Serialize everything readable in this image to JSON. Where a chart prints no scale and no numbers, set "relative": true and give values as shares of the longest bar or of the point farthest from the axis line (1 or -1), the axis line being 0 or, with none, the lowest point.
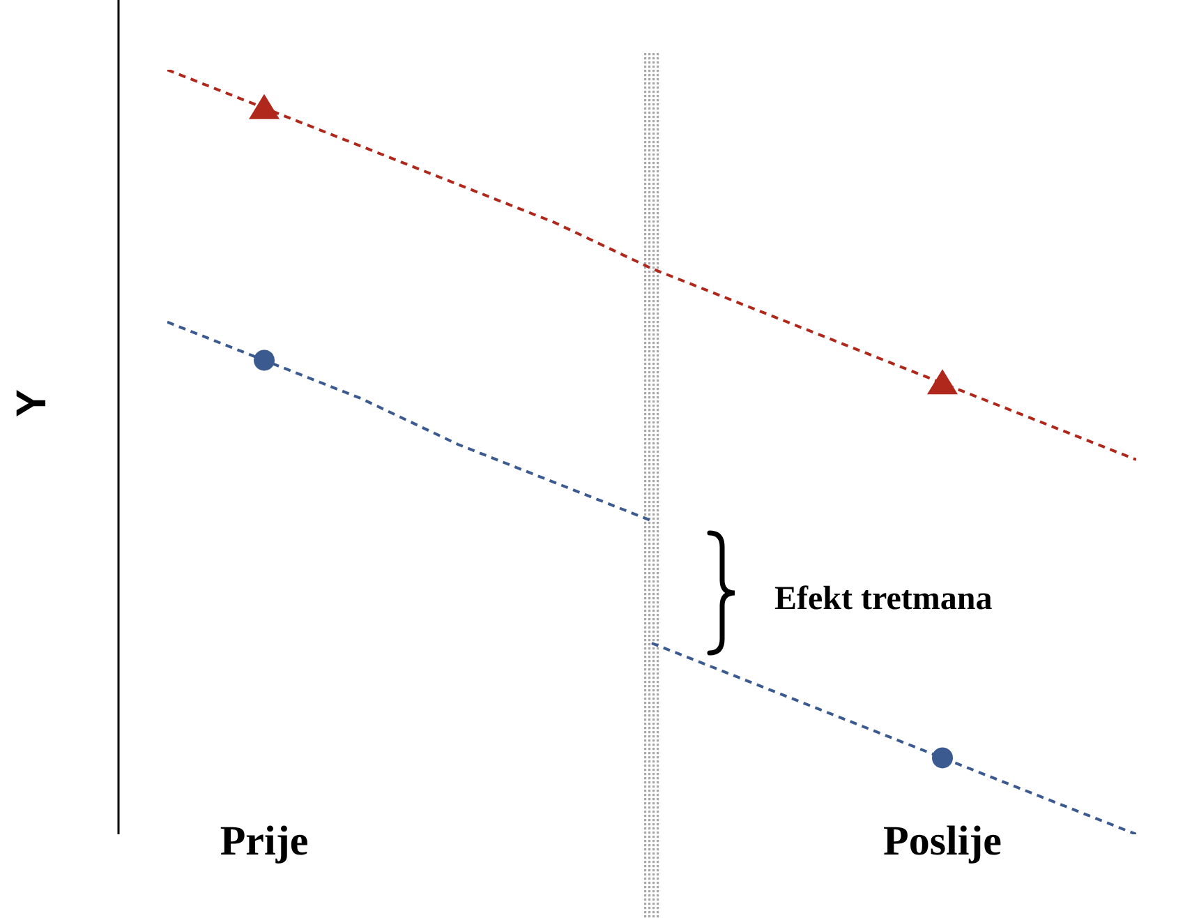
{
  "chart_data": {
    "type": "line",
    "relative": true,
    "ylabel": "Y",
    "categories": [
      null,
      "Prije",
      null,
      null,
      null,
      null,
      null,
      null,
      "Poslije",
      null,
      null
    ],
    "series": [
      {
        "color": "#b0281c",
        "line_style": "dashed",
        "marker": "none",
        "values": [
          1,
          0.95,
          0.9,
          0.85,
          0.8,
          0.74,
          0.69,
          0.64,
          0.59,
          0.54,
          0.49
        ]
      },
      {
        "color": "#3b5a8f",
        "line_style": "dashed",
        "marker": "none",
        "values": [
          0.67,
          0.62,
          0.57,
          0.51,
          0.46,
          0.41,
          null,
          null,
          null,
          null,
          null
        ]
      },
      {
        "color": "#3b5a8f",
        "line_style": "dashed",
        "marker": "none",
        "values": [
          null,
          null,
          null,
          null,
          null,
          0.25,
          0.2,
          0.15,
          0.1,
          0.05,
          0
        ]
      },
      {
        "type": "scatter",
        "color": "#b0281c",
        "marker": "triangle",
        "x": [
          "Prije",
          "Poslije"
        ],
        "values": [
          0.95,
          0.59
        ]
      },
      {
        "type": "scatter",
        "color": "#3b5a8f",
        "marker": "circle",
        "x": [
          "Prije",
          "Poslije"
        ],
        "values": [
          0.62,
          0.1
        ]
      }
    ],
    "annotations": [
      "Efekt tretmana"
    ],
    "grid": false,
    "legend": false,
    "tick_labels": "x"
  }
}
